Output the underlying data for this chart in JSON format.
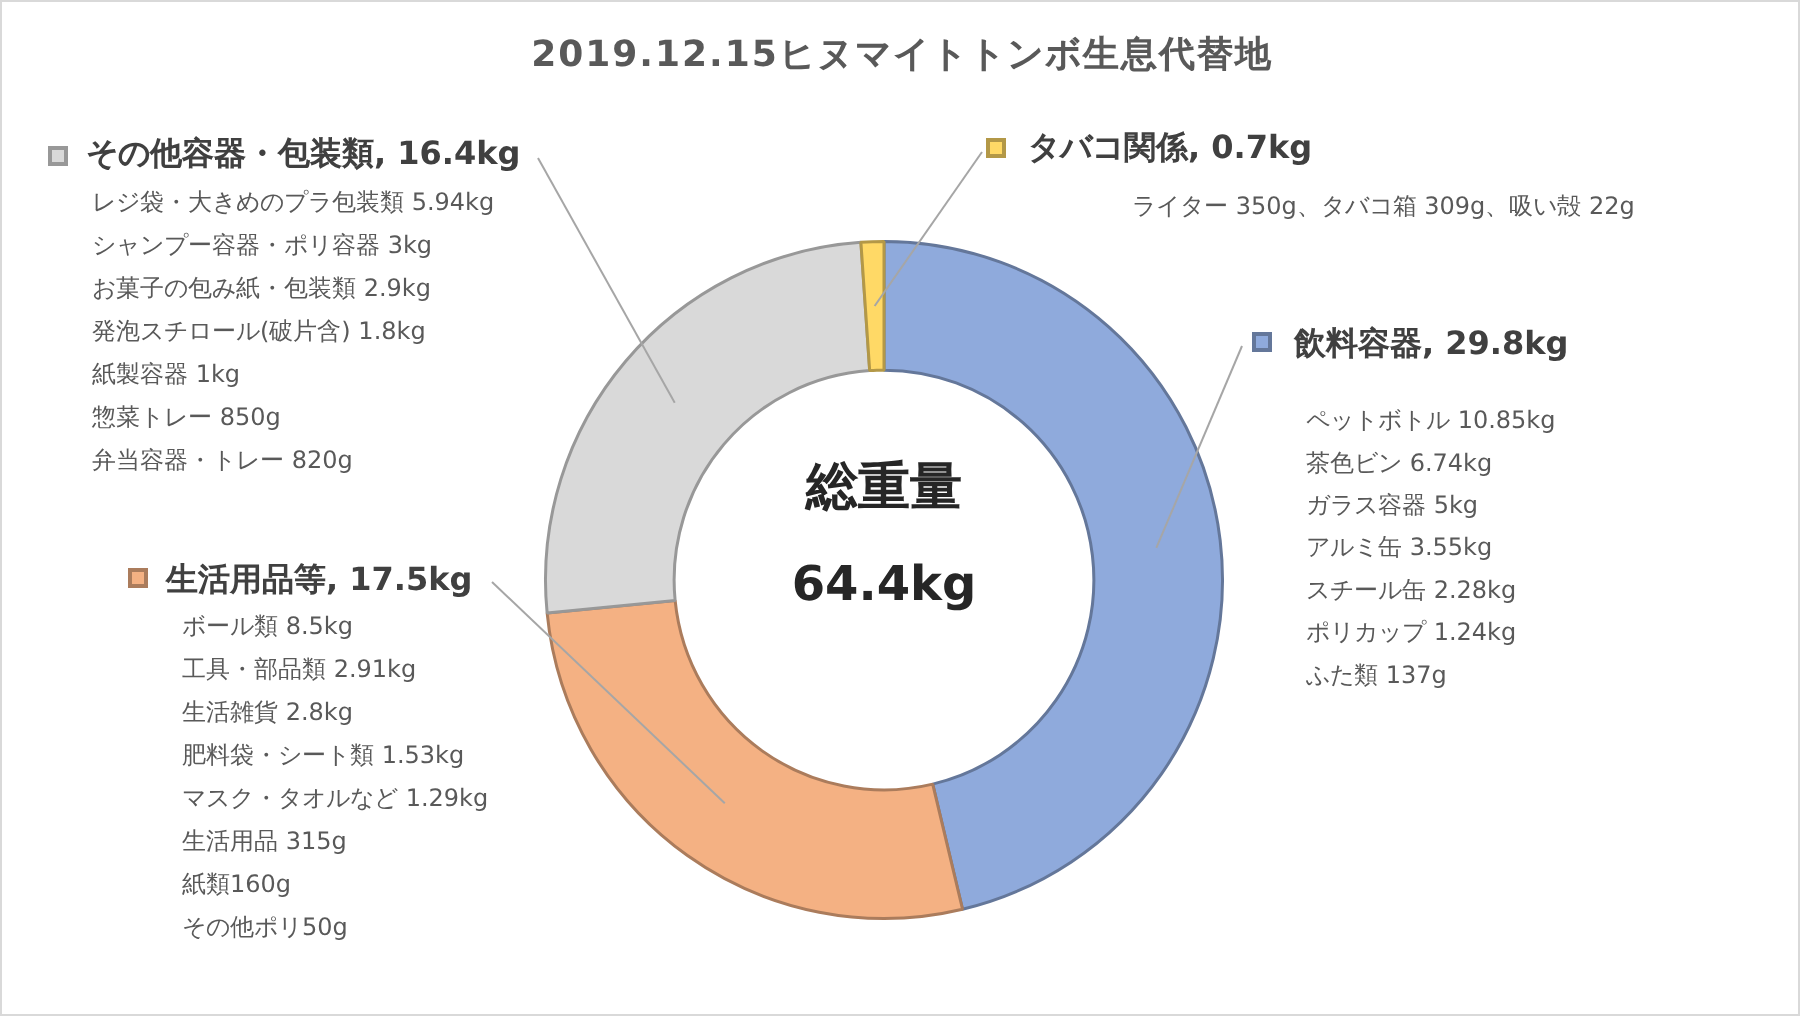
{
  "chart_data": {
    "type": "donut",
    "title": "2019.12.15ヒヌマイトトンボ生息代替地",
    "categories": [
      "飲料容器",
      "生活用品等",
      "その他容器・包装類",
      "タバコ関係"
    ],
    "values": [
      29.8,
      17.5,
      16.4,
      0.7
    ],
    "value_labels": [
      "29.8kg",
      "17.5kg",
      "16.4kg",
      "0.7kg"
    ],
    "colors": [
      "#8faadc",
      "#f4b183",
      "#d9d9d9",
      "#ffd966"
    ],
    "legend": "top left",
    "annotations": [
      "総重量",
      "64.4kg",
      "ペットボトル 10.85kg",
      "茶色ビン 6.74kg",
      "ガラス容器 5kg",
      "アルミ缶 3.55kg",
      "スチール缶 2.28kg",
      "ポリカップ 1.24kg",
      "ふた類 137g",
      "ボール類 8.5kg",
      "工具・部品類 2.91kg",
      "生活雑貨 2.8kg",
      "肥料袋・シート類 1.53kg",
      "マスク・タオルなど 1.29kg",
      "生活用品 315g",
      "紙類160g",
      "その他ポリ50g",
      "レジ袋・大きめのプラ包装類 5.94kg",
      "シャンプー容器・ポリ容器 3kg",
      "お菓子の包み紙・包装類 2.9kg",
      "発泡スチロール(破片含) 1.8kg",
      "紙製容器 1kg",
      "惣菜トレー 850g",
      "弁当容器・トレー 820g",
      "ライター 350g、タバコ箱 309g、吸い殻 22g"
    ]
  }
}
